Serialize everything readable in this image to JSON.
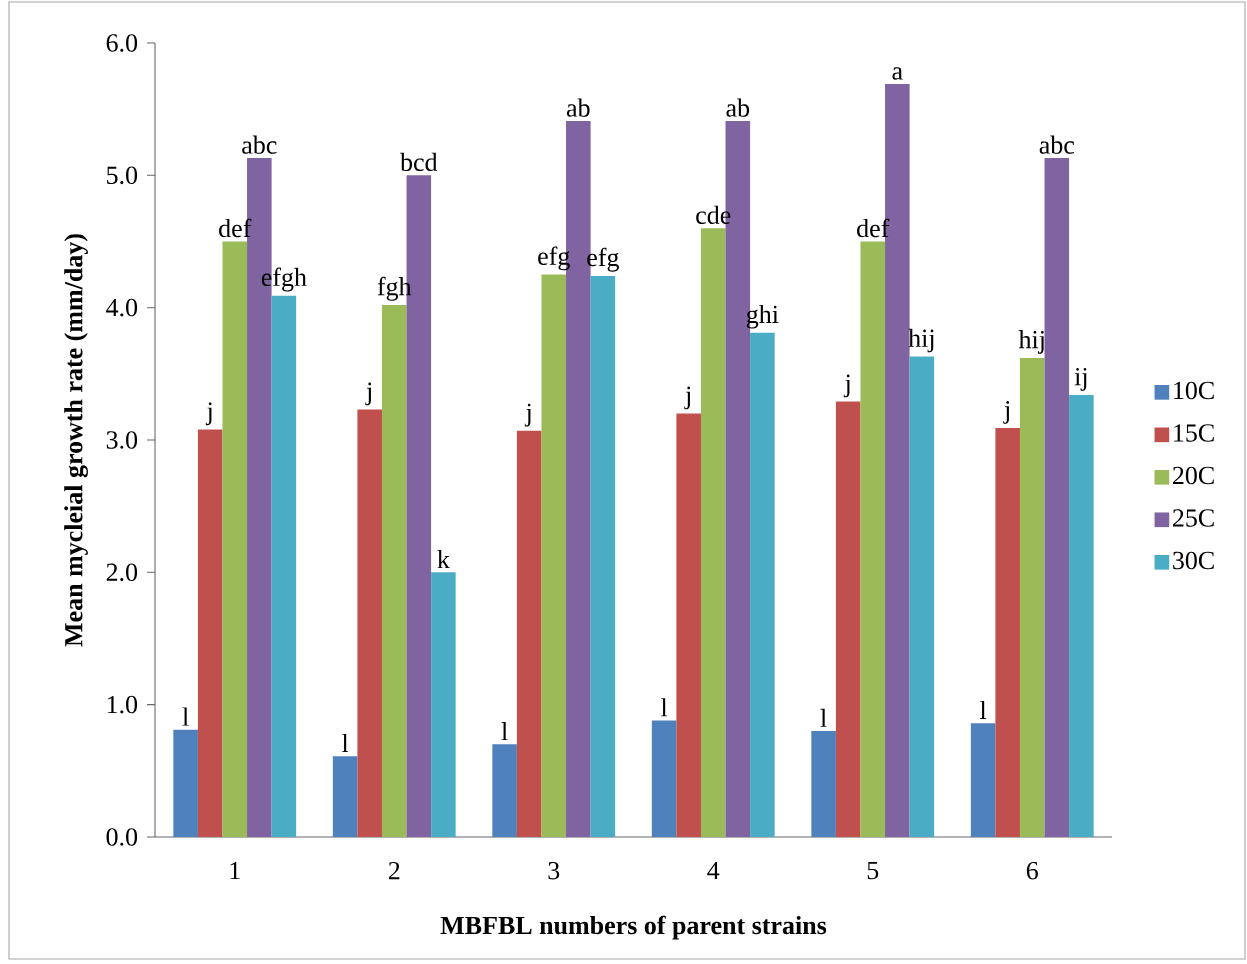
{
  "chart_data": {
    "type": "bar",
    "xlabel": "MBFBL numbers of parent strains",
    "ylabel": "Mean mycleial growth rate (mm/day)",
    "categories": [
      "1",
      "2",
      "3",
      "4",
      "5",
      "6"
    ],
    "series": [
      {
        "name": "10C",
        "color": "#4f81bd",
        "values": [
          0.81,
          0.61,
          0.7,
          0.88,
          0.8,
          0.86
        ]
      },
      {
        "name": "15C",
        "color": "#c0504d",
        "values": [
          3.08,
          3.23,
          3.07,
          3.2,
          3.29,
          3.09
        ]
      },
      {
        "name": "20C",
        "color": "#9bbb59",
        "values": [
          4.5,
          4.02,
          4.25,
          4.6,
          4.5,
          3.62
        ]
      },
      {
        "name": "25C",
        "color": "#8064a2",
        "values": [
          5.13,
          5.0,
          5.41,
          5.41,
          5.69,
          5.13
        ]
      },
      {
        "name": "30C",
        "color": "#4bacc6",
        "values": [
          4.09,
          2.0,
          4.24,
          3.81,
          3.63,
          3.34
        ]
      }
    ],
    "ylim": [
      0,
      6
    ],
    "yticks": [
      {
        "value": 0,
        "label": "0.0"
      },
      {
        "value": 1,
        "label": "1.0"
      },
      {
        "value": 2,
        "label": "2.0"
      },
      {
        "value": 3,
        "label": "3.0"
      },
      {
        "value": 4,
        "label": "4.0"
      },
      {
        "value": 5,
        "label": "5.0"
      },
      {
        "value": 6,
        "label": "6.0"
      }
    ],
    "legend": "right",
    "annotations": [
      "l",
      "j",
      "def",
      "abc",
      "efgh",
      "l",
      "j",
      "fgh",
      "bcd",
      "k",
      "l",
      "j",
      "efg",
      "ab",
      "efg",
      "l",
      "j",
      "cde",
      "ab",
      "ghi",
      "l",
      "j",
      "def",
      "a",
      "hij",
      "l",
      "j",
      "hij",
      "abc",
      "ij"
    ]
  }
}
